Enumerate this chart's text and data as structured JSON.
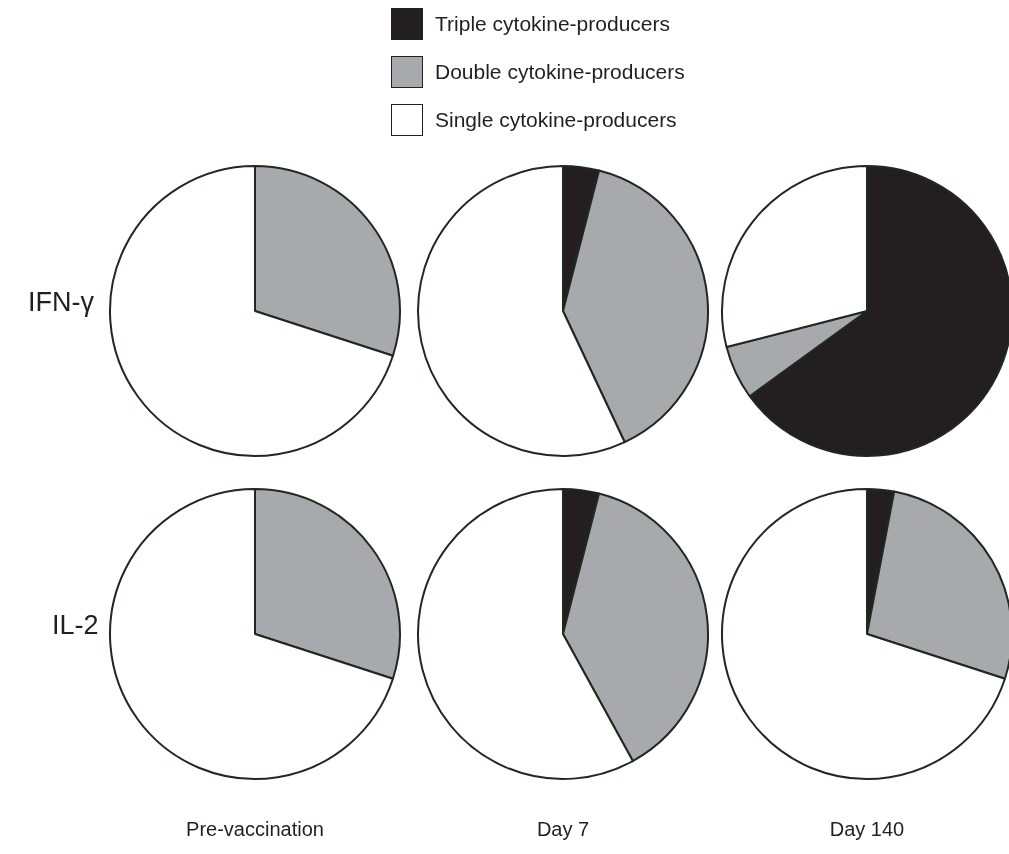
{
  "chart_data": [
    {
      "type": "pie",
      "ylabel": "IFN-γ",
      "values": [
        0,
        30,
        70
      ],
      "colors": [
        "#231f20",
        "#a7a9ac",
        "#ffffff"
      ]
    },
    {
      "type": "pie",
      "categories": [
        "Triple cytokine-producers",
        "Double cytokine-producers",
        "Single cytokine-producers"
      ],
      "values": [
        4,
        39,
        57
      ],
      "colors": [
        "#231f20",
        "#a7a9ac",
        "#ffffff"
      ],
      "legend": "top"
    },
    {
      "type": "pie",
      "values": [
        65,
        6,
        29
      ],
      "colors": [
        "#231f20",
        "#a7a9ac",
        "#ffffff"
      ]
    },
    {
      "type": "pie",
      "ylabel": "IL-2",
      "xlabel": "Pre-vaccination",
      "values": [
        0,
        30,
        70
      ],
      "colors": [
        "#231f20",
        "#a7a9ac",
        "#ffffff"
      ]
    },
    {
      "type": "pie",
      "xlabel": "Day 7",
      "values": [
        4,
        38,
        58
      ],
      "colors": [
        "#231f20",
        "#a7a9ac",
        "#ffffff"
      ]
    },
    {
      "type": "pie",
      "xlabel": "Day 140",
      "values": [
        3,
        27,
        70
      ],
      "colors": [
        "#231f20",
        "#a7a9ac",
        "#ffffff"
      ]
    }
  ]
}
